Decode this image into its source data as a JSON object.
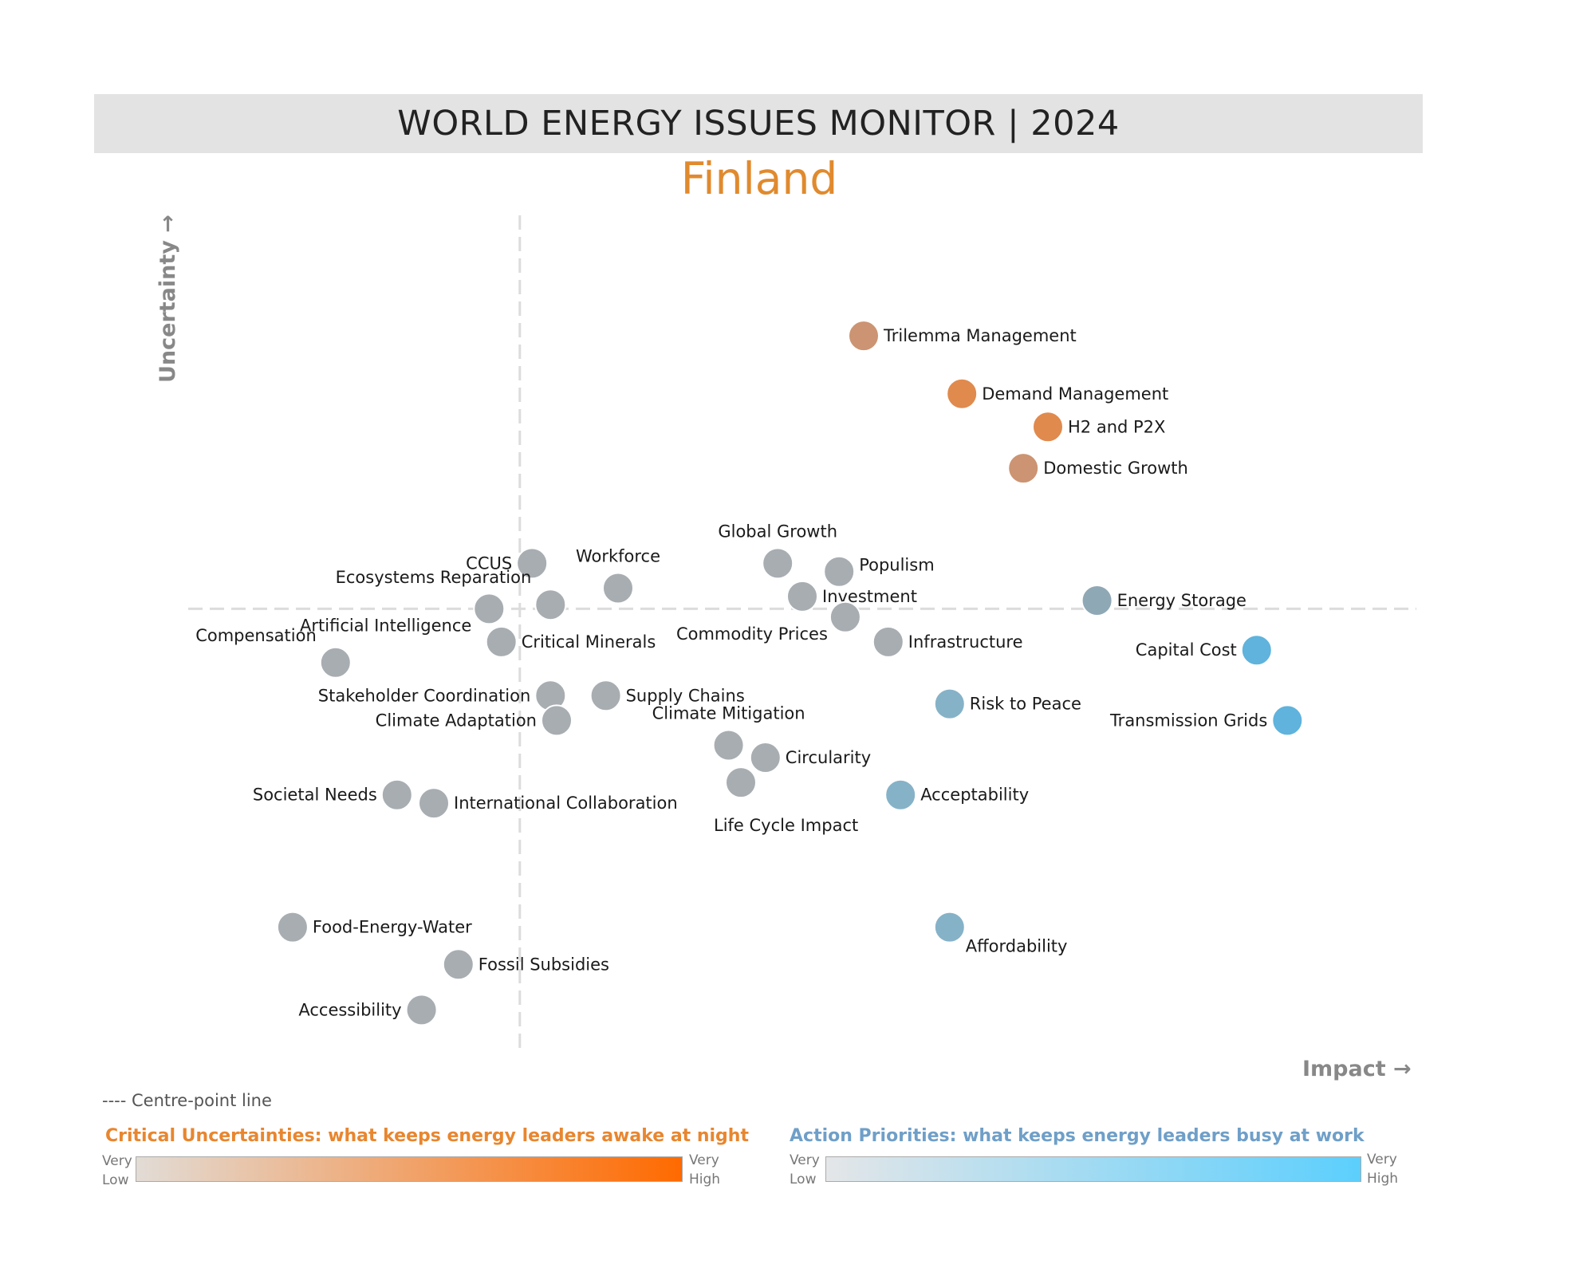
{
  "header": {
    "title": "WORLD ENERGY ISSUES MONITOR | 2024",
    "subtitle": "Finland"
  },
  "colors": {
    "neutral": "#a8adb2",
    "uncertainty_high": "#e08a4e",
    "uncertainty_mid": "#cc9472",
    "action_high": "#5fb3dc",
    "action_mid": "#86b2c8",
    "action_low": "#8fa8b5",
    "banner": "#e3e3e3",
    "subtitle": "#e08a2e"
  },
  "chart_data": {
    "type": "scatter",
    "title": "WORLD ENERGY ISSUES MONITOR | 2024",
    "subtitle": "Finland",
    "xlabel": "Impact →",
    "ylabel": "Uncertainty →",
    "xlim": [
      0,
      10
    ],
    "ylim": [
      0,
      10
    ],
    "centre_point": {
      "x": 2.7,
      "y": 5.3
    },
    "grid": false,
    "points": [
      {
        "name": "Trilemma Management",
        "x": 5.5,
        "y": 8.6,
        "color": "#cc9472",
        "label_side": "right"
      },
      {
        "name": "Demand Management",
        "x": 6.3,
        "y": 7.9,
        "color": "#e08a4e",
        "label_side": "right"
      },
      {
        "name": "H2 and P2X",
        "x": 7.0,
        "y": 7.5,
        "color": "#e08a4e",
        "label_side": "right"
      },
      {
        "name": "Domestic Growth",
        "x": 6.8,
        "y": 7.0,
        "color": "#cc9472",
        "label_side": "right"
      },
      {
        "name": "Global Growth",
        "x": 4.8,
        "y": 5.85,
        "color": "#a8adb2",
        "label_side": "above"
      },
      {
        "name": "Populism",
        "x": 5.3,
        "y": 5.75,
        "color": "#a8adb2",
        "label_side": "right-up"
      },
      {
        "name": "Investment",
        "x": 5.0,
        "y": 5.45,
        "color": "#a8adb2",
        "label_side": "right"
      },
      {
        "name": "Energy Storage",
        "x": 7.4,
        "y": 5.4,
        "color": "#8fa8b5",
        "label_side": "right"
      },
      {
        "name": "CCUS",
        "x": 2.8,
        "y": 5.85,
        "color": "#a8adb2",
        "label_side": "left"
      },
      {
        "name": "Workforce",
        "x": 3.5,
        "y": 5.55,
        "color": "#a8adb2",
        "label_side": "above"
      },
      {
        "name": "Ecosystems Reparation",
        "x": 2.95,
        "y": 5.35,
        "color": "#a8adb2",
        "label_side": "above-left"
      },
      {
        "name": "Artificial Intelligence",
        "x": 2.45,
        "y": 5.3,
        "color": "#a8adb2",
        "label_side": "below-left"
      },
      {
        "name": "Critical Minerals",
        "x": 2.55,
        "y": 4.9,
        "color": "#a8adb2",
        "label_side": "right"
      },
      {
        "name": "Commodity Prices",
        "x": 5.35,
        "y": 5.2,
        "color": "#a8adb2",
        "label_side": "below-left"
      },
      {
        "name": "Infrastructure",
        "x": 5.7,
        "y": 4.9,
        "color": "#a8adb2",
        "label_side": "right"
      },
      {
        "name": "Capital Cost",
        "x": 8.7,
        "y": 4.8,
        "color": "#5fb3dc",
        "label_side": "left"
      },
      {
        "name": "Compensation",
        "x": 1.2,
        "y": 4.65,
        "color": "#a8adb2",
        "label_side": "above-left"
      },
      {
        "name": "Stakeholder Coordination",
        "x": 2.95,
        "y": 4.25,
        "color": "#a8adb2",
        "label_side": "left"
      },
      {
        "name": "Supply Chains",
        "x": 3.4,
        "y": 4.25,
        "color": "#a8adb2",
        "label_side": "right"
      },
      {
        "name": "Climate Adaptation",
        "x": 3.0,
        "y": 3.95,
        "color": "#a8adb2",
        "label_side": "left"
      },
      {
        "name": "Risk to Peace",
        "x": 6.2,
        "y": 4.15,
        "color": "#86b2c8",
        "label_side": "right"
      },
      {
        "name": "Transmission Grids",
        "x": 8.95,
        "y": 3.95,
        "color": "#5fb3dc",
        "label_side": "left"
      },
      {
        "name": "Climate Mitigation",
        "x": 4.4,
        "y": 3.65,
        "color": "#a8adb2",
        "label_side": "above"
      },
      {
        "name": "Circularity",
        "x": 4.7,
        "y": 3.5,
        "color": "#a8adb2",
        "label_side": "right"
      },
      {
        "name": "Life Cycle Impact",
        "x": 4.5,
        "y": 3.2,
        "color": "#a8adb2",
        "label_side": "below"
      },
      {
        "name": "Societal Needs",
        "x": 1.7,
        "y": 3.05,
        "color": "#a8adb2",
        "label_side": "left"
      },
      {
        "name": "International Collaboration",
        "x": 2.0,
        "y": 2.95,
        "color": "#a8adb2",
        "label_side": "right"
      },
      {
        "name": "Acceptability",
        "x": 5.8,
        "y": 3.05,
        "color": "#86b2c8",
        "label_side": "right"
      },
      {
        "name": "Food-Energy-Water",
        "x": 0.85,
        "y": 1.45,
        "color": "#a8adb2",
        "label_side": "right"
      },
      {
        "name": "Affordability",
        "x": 6.2,
        "y": 1.45,
        "color": "#86b2c8",
        "label_side": "below-right"
      },
      {
        "name": "Fossil Subsidies",
        "x": 2.2,
        "y": 1.0,
        "color": "#a8adb2",
        "label_side": "right"
      },
      {
        "name": "Accessibility",
        "x": 1.9,
        "y": 0.45,
        "color": "#a8adb2",
        "label_side": "left"
      }
    ]
  },
  "legend": {
    "centre_line": "---- Centre-point line",
    "critical_title": "Critical Uncertainties: what keeps energy leaders awake at night",
    "action_title": "Action Priorities: what keeps energy leaders busy at work",
    "very": "Very",
    "low": "Low",
    "high": "High"
  }
}
